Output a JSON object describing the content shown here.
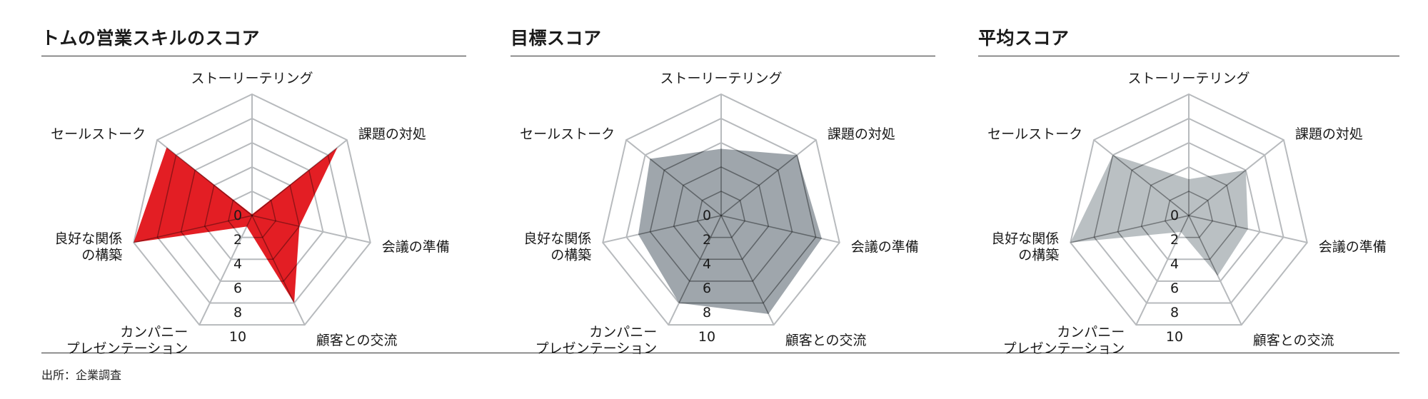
{
  "source": "出所：企業調査",
  "colors": {
    "grid": "#b7babd",
    "spoke": "#b7babd",
    "tom_fill": "#e31e24",
    "target_fill": "#8e979e",
    "average_fill": "#b3b9bd"
  },
  "chart_data": [
    {
      "type": "radar",
      "title": "トムの営業スキルのスコア",
      "axes": [
        "ストーリーテリング",
        "課題の対処",
        "会議の準備",
        "顧客との交流",
        "カンパニー\nプレゼンテーション",
        "良好な関係\nの構築",
        "セールストーク"
      ],
      "ticks": [
        "0",
        "2",
        "4",
        "6",
        "8",
        "10"
      ],
      "rlim": [
        0,
        10
      ],
      "values": [
        0.1,
        9,
        4,
        8,
        1,
        10,
        9
      ],
      "fill": "#e31e24",
      "fill_opacity": 1
    },
    {
      "type": "radar",
      "title": "目標スコア",
      "axes": [
        "ストーリーテリング",
        "課題の対処",
        "会議の準備",
        "顧客との交流",
        "カンパニー\nプレゼンテーション",
        "良好な関係\nの構築",
        "セールストーク"
      ],
      "ticks": [
        "0",
        "2",
        "4",
        "6",
        "8",
        "10"
      ],
      "rlim": [
        0,
        10
      ],
      "values": [
        5.5,
        8,
        8.5,
        9,
        8,
        7,
        7.5
      ],
      "fill": "#8e979e",
      "fill_opacity": 0.85
    },
    {
      "type": "radar",
      "title": "平均スコア",
      "axes": [
        "ストーリーテリング",
        "課題の対処",
        "会議の準備",
        "顧客との交流",
        "カンパニー\nプレゼンテーション",
        "良好な関係\nの構築",
        "セールストーク"
      ],
      "ticks": [
        "0",
        "2",
        "4",
        "6",
        "8",
        "10"
      ],
      "rlim": [
        0,
        10
      ],
      "values": [
        3,
        6,
        5,
        5.5,
        1.5,
        10,
        8
      ],
      "fill": "#b3b9bd",
      "fill_opacity": 0.9
    }
  ]
}
